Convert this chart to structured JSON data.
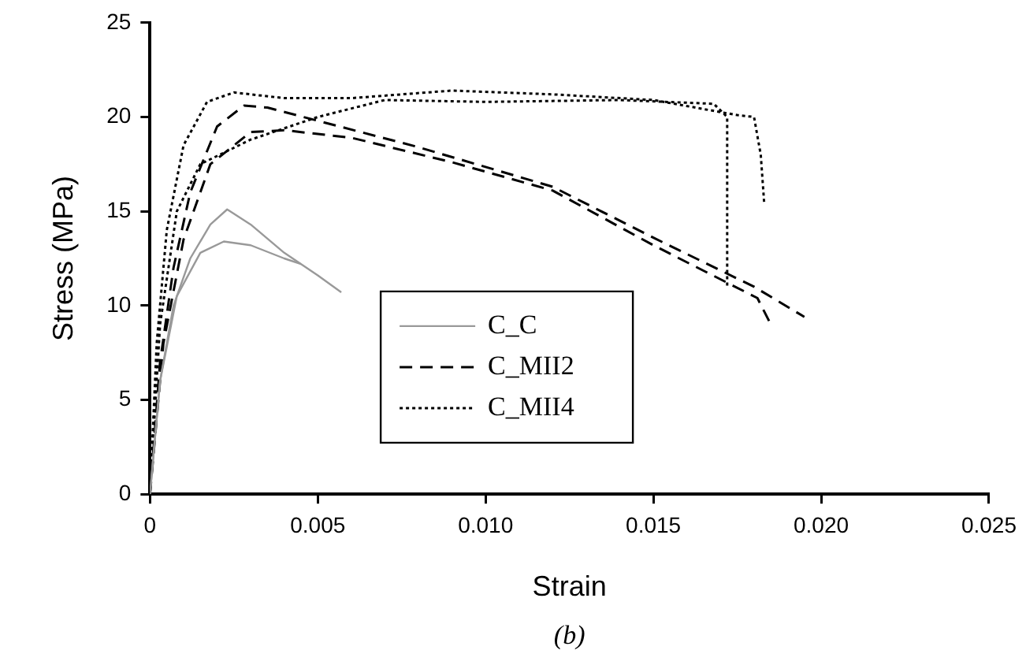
{
  "chart_data": {
    "type": "line",
    "xlabel": "Strain",
    "ylabel": "Stress (MPa)",
    "annotations": [
      "(b)"
    ],
    "xlim": [
      0,
      0.025
    ],
    "xticks": [
      {
        "value": 0,
        "label": "0"
      },
      0.005,
      {
        "value": 0.01,
        "label": "0.010"
      },
      0.015,
      {
        "value": 0.02,
        "label": "0.020"
      },
      0.025
    ],
    "ylim": [
      0,
      25
    ],
    "yticks": [
      0,
      5,
      10,
      15,
      20,
      25
    ],
    "grid": false,
    "legend": "center",
    "marker": "none",
    "series": [
      {
        "name": "C_C",
        "color": "#999999",
        "line_style": "solid",
        "x": [
          0,
          0.0003,
          0.0007,
          0.0012,
          0.0018,
          0.0023,
          0.003,
          0.004,
          0.005,
          0.0057
        ],
        "values": [
          0,
          6,
          10,
          12.5,
          14.3,
          15.1,
          14.3,
          12.8,
          11.6,
          10.7
        ]
      },
      {
        "color": "#999999",
        "line_style": "solid",
        "x": [
          0,
          0.0003,
          0.0008,
          0.0015,
          0.0022,
          0.003,
          0.004,
          0.0045
        ],
        "values": [
          0,
          6,
          10.5,
          12.8,
          13.4,
          13.2,
          12.5,
          12.2
        ]
      },
      {
        "name": "C_MII2",
        "color": "#000000",
        "line_style": "dashed",
        "x": [
          0,
          0.0003,
          0.0007,
          0.0012,
          0.002,
          0.0028,
          0.0035,
          0.005,
          0.008,
          0.012,
          0.015,
          0.018,
          0.0195
        ],
        "values": [
          0,
          7,
          12,
          16,
          19.5,
          20.6,
          20.5,
          19.8,
          18.4,
          16.3,
          13.6,
          11,
          9.4
        ]
      },
      {
        "color": "#000000",
        "line_style": "dashed",
        "x": [
          0,
          0.0004,
          0.001,
          0.0018,
          0.003,
          0.004,
          0.006,
          0.009,
          0.012,
          0.015,
          0.0181,
          0.0185
        ],
        "values": [
          0,
          8,
          13.5,
          17.5,
          19.2,
          19.3,
          18.9,
          17.6,
          16.1,
          13.2,
          10.4,
          9
        ]
      },
      {
        "name": "C_MII4",
        "color": "#000000",
        "line_style": "dotted",
        "x": [
          0,
          0.0002,
          0.0005,
          0.001,
          0.0017,
          0.0025,
          0.004,
          0.006,
          0.009,
          0.012,
          0.015,
          0.0175,
          0.018,
          0.0182,
          0.0183
        ],
        "values": [
          0,
          8,
          14,
          18.5,
          20.8,
          21.3,
          21,
          21,
          21.4,
          21.2,
          20.9,
          20.1,
          20,
          18,
          15.5
        ]
      },
      {
        "color": "#000000",
        "line_style": "dotted",
        "x": [
          0,
          0.0003,
          0.0008,
          0.0015,
          0.003,
          0.005,
          0.007,
          0.01,
          0.014,
          0.0168,
          0.0172,
          0.0172
        ],
        "values": [
          0,
          9,
          15,
          17.5,
          18.8,
          20,
          20.9,
          20.8,
          20.9,
          20.7,
          20,
          11
        ]
      }
    ]
  }
}
